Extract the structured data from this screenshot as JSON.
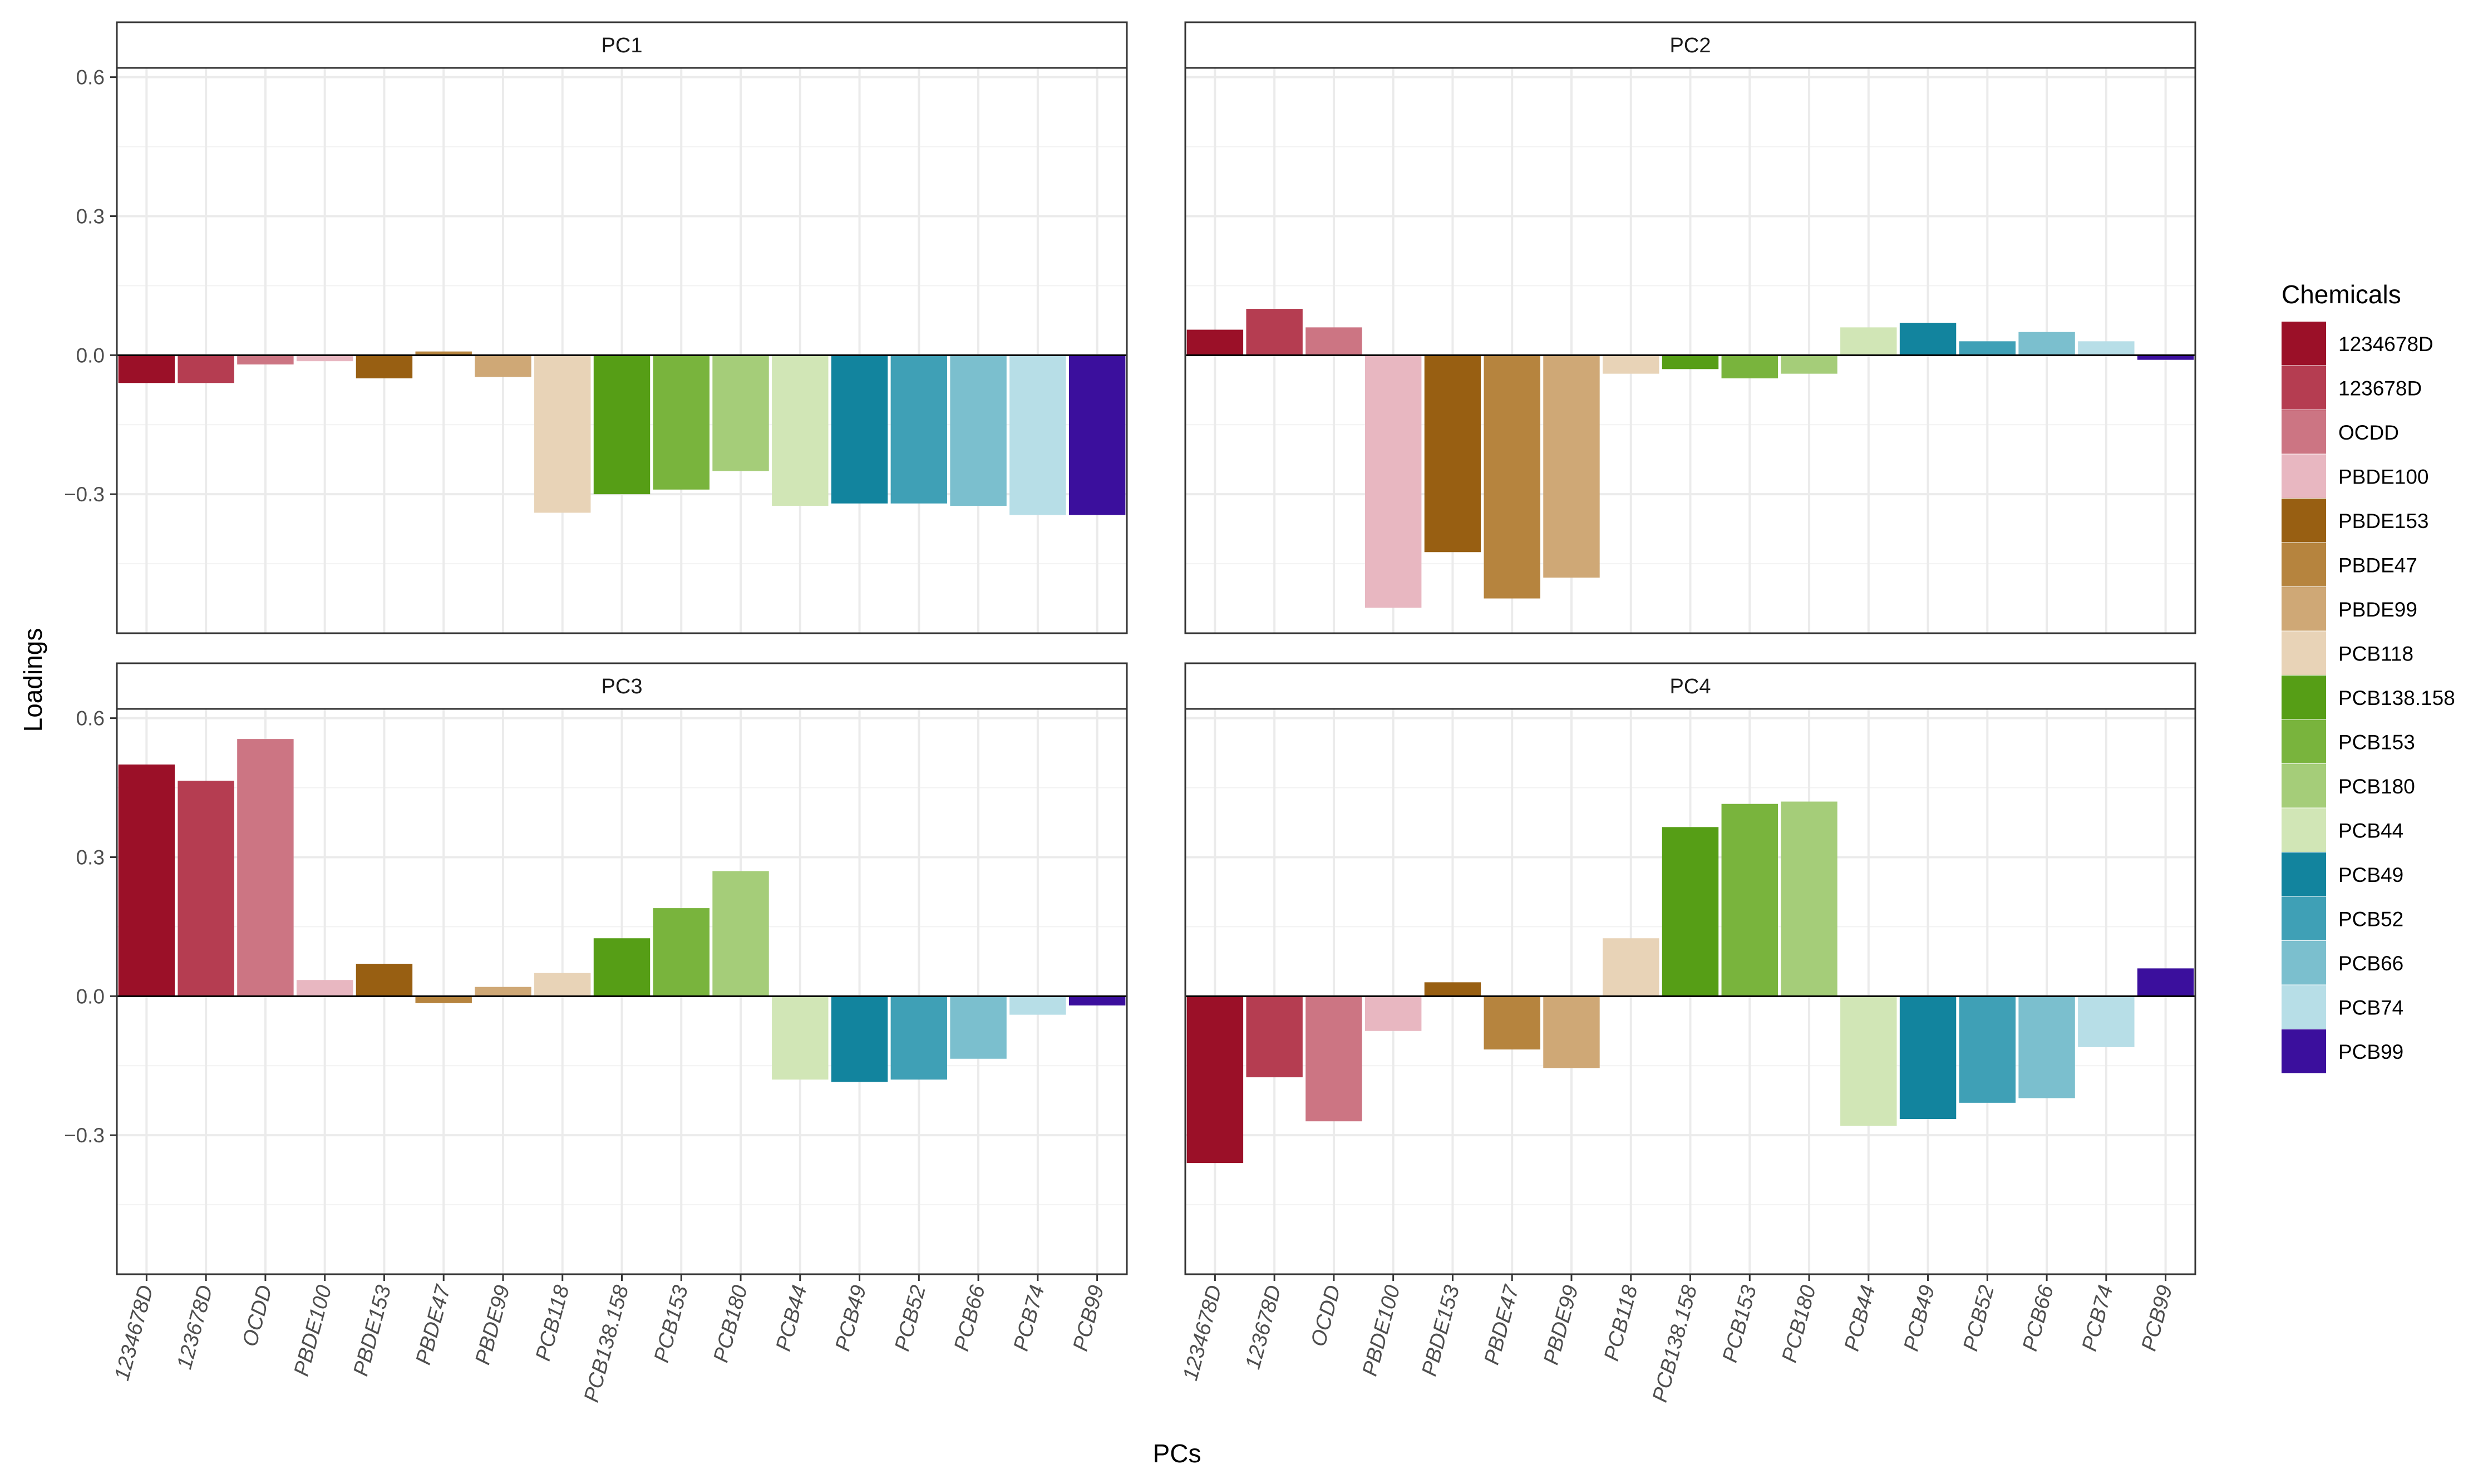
{
  "chart_data": {
    "type": "bar",
    "xlabel": "PCs",
    "ylabel": "Loadings",
    "ylim": [
      -0.6,
      0.6
    ],
    "y_ticks": [
      -0.3,
      0.0,
      0.3,
      0.6
    ],
    "y_tick_labels": [
      "−0.3",
      "0.0",
      "0.3",
      "0.6"
    ],
    "grid": true,
    "legend_position": "right",
    "legend_title": "Chemicals",
    "categories": [
      "1234678D",
      "123678D",
      "OCDD",
      "PBDE100",
      "PBDE153",
      "PBDE47",
      "PBDE99",
      "PCB118",
      "PCB138.158",
      "PCB153",
      "PCB180",
      "PCB44",
      "PCB49",
      "PCB52",
      "PCB66",
      "PCB74",
      "PCB99"
    ],
    "colors": [
      "#9b1028",
      "#b53d51",
      "#cc7583",
      "#e8b7c1",
      "#985f12",
      "#b6843e",
      "#cfa876",
      "#e8d3b7",
      "#569e16",
      "#79b43d",
      "#a5cd79",
      "#d1e6b6",
      "#12849e",
      "#3fa0b6",
      "#7bbfce",
      "#b7dee7",
      "#3b0f9d"
    ],
    "panels": [
      {
        "name": "PC1",
        "values": [
          -0.06,
          -0.06,
          -0.02,
          -0.013,
          -0.05,
          0.008,
          -0.047,
          -0.34,
          -0.3,
          -0.29,
          -0.25,
          -0.325,
          -0.32,
          -0.32,
          -0.325,
          -0.345,
          -0.345
        ]
      },
      {
        "name": "PC2",
        "values": [
          0.055,
          0.1,
          0.06,
          -0.545,
          -0.425,
          -0.525,
          -0.48,
          -0.04,
          -0.03,
          -0.05,
          -0.04,
          0.06,
          0.07,
          0.03,
          0.05,
          0.03,
          -0.01
        ]
      },
      {
        "name": "PC3",
        "values": [
          0.5,
          0.465,
          0.555,
          0.035,
          0.07,
          -0.015,
          0.02,
          0.05,
          0.125,
          0.19,
          0.27,
          -0.18,
          -0.185,
          -0.18,
          -0.135,
          -0.04,
          -0.02
        ]
      },
      {
        "name": "PC4",
        "values": [
          -0.36,
          -0.175,
          -0.27,
          -0.075,
          0.03,
          -0.115,
          -0.155,
          0.125,
          0.365,
          0.415,
          0.42,
          -0.28,
          -0.265,
          -0.23,
          -0.22,
          -0.11,
          0.06
        ]
      }
    ]
  }
}
